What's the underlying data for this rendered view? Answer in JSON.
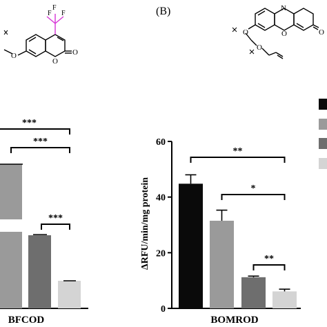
{
  "panel_b_label": "(B)",
  "structures": [
    {
      "name": "BFCOD-substrate",
      "substituent": "CF3",
      "f_label": "F",
      "ring_o": "O",
      "keto_o": "O",
      "ether_o": "O"
    },
    {
      "name": "BOMROD-substrate",
      "n_label": "N",
      "ring_o": "O",
      "keto_o": "O",
      "ether_o1": "O",
      "ether_o2": "O"
    }
  ],
  "legend": {
    "colors": [
      "#0a0a0a",
      "#9a9a9a",
      "#6e6e6e",
      "#d4d4d4"
    ]
  },
  "chart_data": [
    {
      "type": "bar",
      "xlabel": "BFCOD",
      "ylabel": "",
      "visible_values": [
        null,
        52,
        37,
        10
      ],
      "errors": [
        0,
        0.5,
        0.4,
        0.3
      ],
      "colors": [
        "#0a0a0a",
        "#9a9a9a",
        "#6e6e6e",
        "#d4d4d4"
      ],
      "axis_break": true,
      "significance": [
        {
          "text": "***",
          "from": 0,
          "to": 3
        },
        {
          "text": "***",
          "from": 1,
          "to": 3
        },
        {
          "text": "***",
          "from": 2,
          "to": 3
        }
      ]
    },
    {
      "type": "bar",
      "xlabel": "BOMROD",
      "ylabel": "ΔRFU/min/mg protein",
      "ylim": [
        0,
        60
      ],
      "yticks": [
        "0",
        "20",
        "40",
        "60"
      ],
      "values": [
        44.8,
        31.5,
        11.2,
        6.1
      ],
      "errors": [
        3.2,
        3.8,
        0.4,
        0.8
      ],
      "colors": [
        "#0a0a0a",
        "#9a9a9a",
        "#6e6e6e",
        "#d4d4d4"
      ],
      "significance": [
        {
          "text": "**",
          "from": 0,
          "to": 3
        },
        {
          "text": "*",
          "from": 1,
          "to": 3
        },
        {
          "text": "**",
          "from": 2,
          "to": 3
        }
      ]
    }
  ]
}
